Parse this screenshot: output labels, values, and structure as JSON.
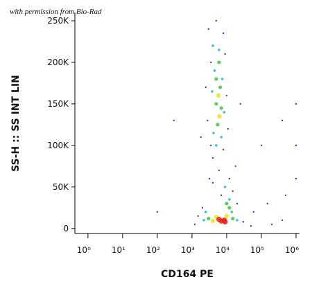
{
  "chart_data": {
    "type": "scatter",
    "annotation": "with permission from Bio-Rad",
    "xlabel": "CD164 PE",
    "ylabel": "SS-H :: SS INT LIN",
    "xscale": "log",
    "xlim": [
      0.42,
      1260000
    ],
    "ylim": [
      -6000,
      260000
    ],
    "xticks": [
      {
        "value": 1,
        "label": "10⁰"
      },
      {
        "value": 10,
        "label": "10¹"
      },
      {
        "value": 100,
        "label": "10²"
      },
      {
        "value": 1000,
        "label": "10³"
      },
      {
        "value": 10000,
        "label": "10⁴"
      },
      {
        "value": 100000,
        "label": "10⁵"
      },
      {
        "value": 1000000,
        "label": "10⁶"
      }
    ],
    "yticks": [
      0,
      {
        "value": 50000,
        "label": "50K"
      },
      {
        "value": 100000,
        "label": "100K"
      },
      {
        "value": 150000,
        "label": "150K"
      },
      {
        "value": 200000,
        "label": "200K"
      },
      {
        "value": 250000,
        "label": "250K"
      }
    ],
    "series": [
      {
        "color": "#1a1aa8",
        "x": [
          3000,
          5000,
          8000,
          3500,
          9000,
          2500,
          10000,
          2800,
          11000,
          3500,
          8000,
          4000,
          6000,
          12000,
          15000,
          20000,
          2000,
          1500,
          1200,
          30000,
          50000,
          200000,
          400000,
          150000,
          60000,
          100000,
          300,
          400000,
          1000000,
          1000000,
          1000000,
          500000,
          100,
          25000,
          7000,
          4000,
          18000,
          1800,
          3200
        ],
        "values": [
          240000,
          250000,
          235000,
          200000,
          210000,
          170000,
          160000,
          130000,
          120000,
          100000,
          95000,
          85000,
          70000,
          60000,
          45000,
          30000,
          25000,
          15000,
          5000,
          8000,
          3000,
          5000,
          10000,
          30000,
          20000,
          100000,
          130000,
          130000,
          150000,
          60000,
          100000,
          40000,
          20000,
          150000,
          40000,
          55000,
          75000,
          110000,
          60000
        ]
      },
      {
        "color": "#18b4e8",
        "x": [
          4000,
          6000,
          4500,
          7500,
          3800,
          8500,
          4200,
          7000,
          5000,
          12000,
          14000,
          2500,
          2200,
          20000,
          9000
        ],
        "values": [
          220000,
          215000,
          190000,
          180000,
          165000,
          140000,
          115000,
          110000,
          100000,
          35000,
          20000,
          20000,
          10000,
          10000,
          50000
        ]
      },
      {
        "color": "#3cc83c",
        "x": [
          5000,
          6500,
          5000,
          7000,
          5500,
          6000,
          3000,
          15000,
          12000,
          10000
        ],
        "values": [
          180000,
          170000,
          150000,
          145000,
          125000,
          200000,
          12000,
          12000,
          25000,
          30000
        ]
      },
      {
        "color": "#f0e020",
        "x": [
          5800,
          6200,
          4000,
          10000,
          5000
        ],
        "values": [
          160000,
          135000,
          9000,
          15000,
          14000
        ]
      },
      {
        "color": "#e82010",
        "x": [
          7000,
          8500,
          6000,
          9000
        ],
        "values": [
          9000,
          10000,
          11000,
          8000
        ]
      }
    ]
  }
}
